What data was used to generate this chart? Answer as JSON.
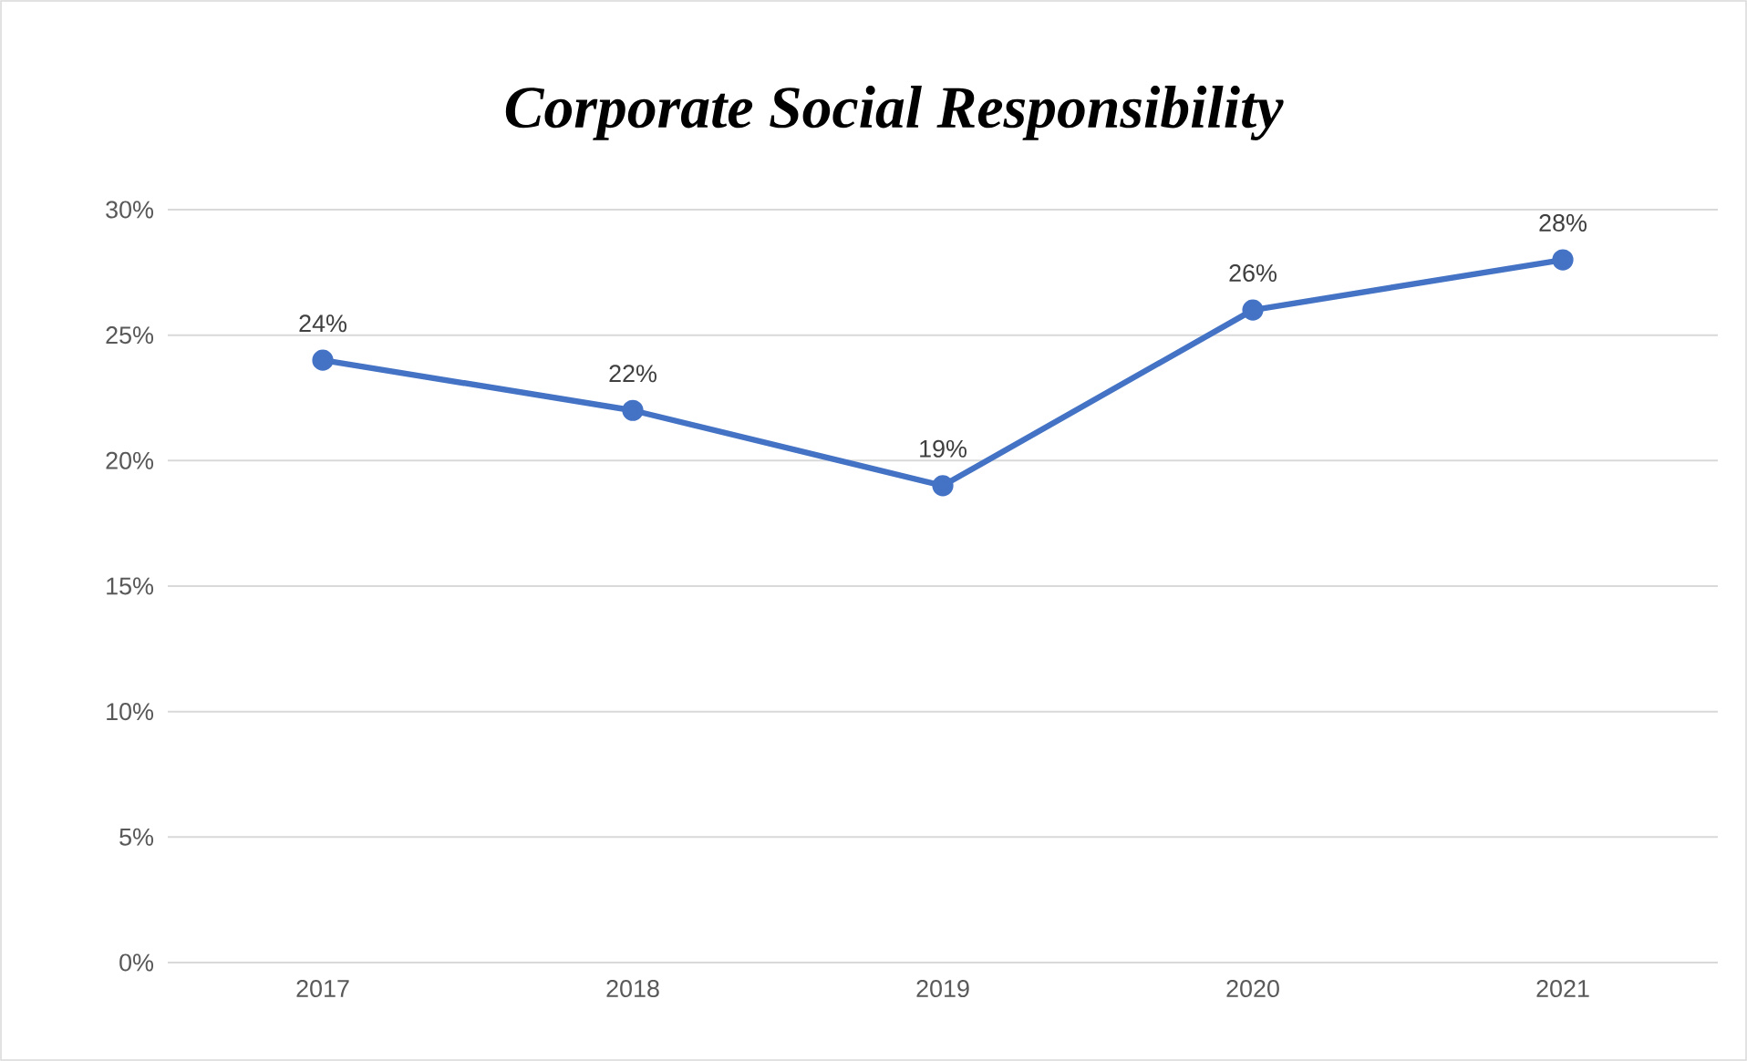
{
  "chart_data": {
    "type": "line",
    "title": "Corporate Social Responsibility",
    "categories": [
      "2017",
      "2018",
      "2019",
      "2020",
      "2021"
    ],
    "values": [
      24,
      22,
      19,
      26,
      28
    ],
    "value_labels": [
      "24%",
      "22%",
      "19%",
      "26%",
      "28%"
    ],
    "color": "#4472c4",
    "marker": "circle",
    "grid": "y",
    "ylim": [
      0,
      30
    ],
    "yticks": [
      {
        "value": 0,
        "label": "0%"
      },
      {
        "value": 5,
        "label": "5%"
      },
      {
        "value": 10,
        "label": "10%"
      },
      {
        "value": 15,
        "label": "15%"
      },
      {
        "value": 20,
        "label": "20%"
      },
      {
        "value": 25,
        "label": "25%"
      },
      {
        "value": 30,
        "label": "30%"
      }
    ]
  }
}
